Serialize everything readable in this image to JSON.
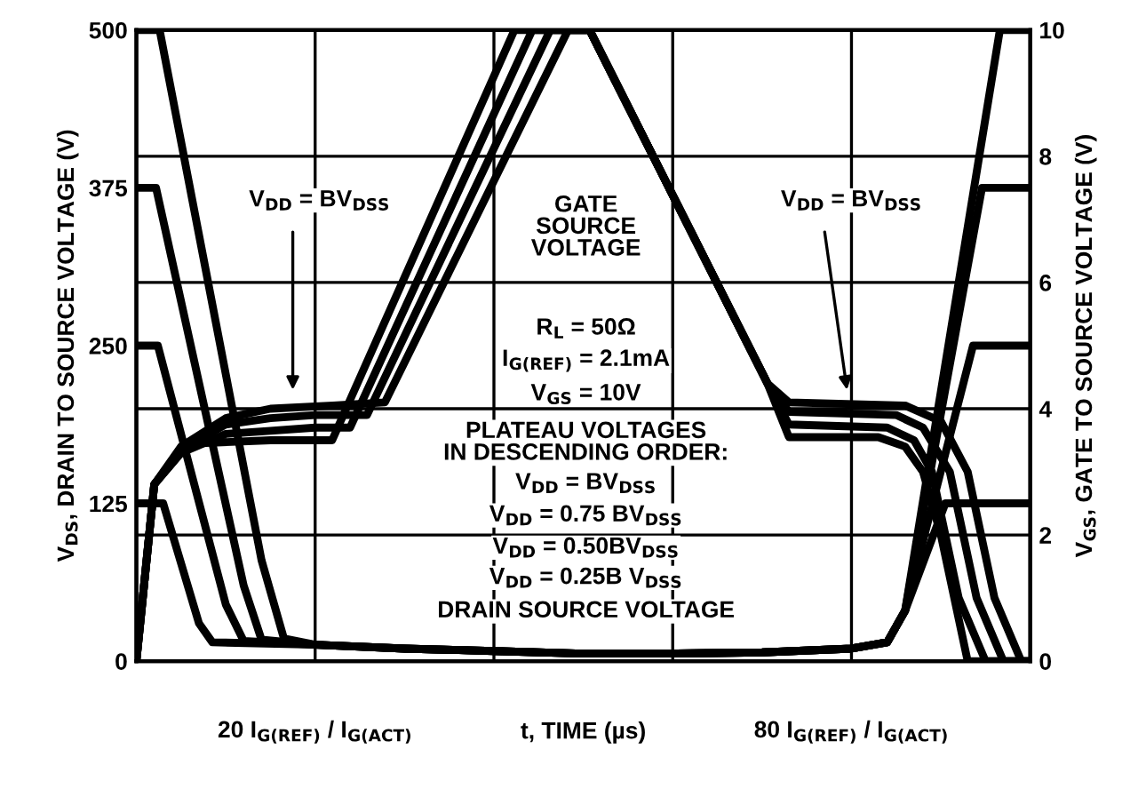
{
  "chart_data": {
    "type": "line",
    "xlabel": "t, TIME (µs)",
    "ylabel": "V$_{DS}$, DRAIN TO SOURCE VOLTAGE (V)",
    "y2label": "V$_{GS}$, GATE TO SOURCE VOLTAGE (V)",
    "xlim": [
      0,
      100
    ],
    "xticks": [
      {
        "value": 20,
        "label": "20 I$_{G(REF)}$ / I$_{G(ACT)}$"
      },
      {
        "value": 40,
        "label": null
      },
      {
        "value": 60,
        "label": null
      },
      {
        "value": 80,
        "label": "80 I$_{G(REF)}$ / I$_{G(ACT)}$"
      }
    ],
    "ylim": [
      0,
      500
    ],
    "yticks": [
      0,
      125,
      250,
      375,
      500
    ],
    "y2lim": [
      0,
      10
    ],
    "y2ticks": [
      0,
      2,
      4,
      6,
      8,
      10
    ],
    "grid": true,
    "marker": "none",
    "line_style": "solid",
    "series": [
      {
        "color": "#000000",
        "x": [
          0,
          2.6,
          14,
          16.5,
          20,
          30,
          40,
          50,
          60,
          70,
          80,
          84,
          86,
          96.6,
          100
        ],
        "values": [
          500,
          500,
          80,
          18,
          13,
          10,
          8,
          6,
          6,
          7,
          10,
          15,
          40,
          500,
          500
        ]
      },
      {
        "color": "#000000",
        "x": [
          0,
          2.2,
          12,
          14,
          20,
          30,
          40,
          50,
          60,
          70,
          80,
          84,
          86,
          94.6,
          100
        ],
        "values": [
          375,
          375,
          60,
          17,
          13,
          10,
          8,
          6,
          6,
          7,
          10,
          15,
          40,
          375,
          375
        ]
      },
      {
        "color": "#000000",
        "x": [
          0,
          2.4,
          10,
          12,
          20,
          30,
          40,
          50,
          60,
          70,
          80,
          84,
          86,
          93.6,
          100
        ],
        "values": [
          250,
          250,
          45,
          16,
          13,
          10,
          8,
          6,
          6,
          7,
          10,
          15,
          40,
          250,
          250
        ]
      },
      {
        "color": "#000000",
        "x": [
          0,
          3,
          7,
          8.5,
          20,
          30,
          40,
          50,
          60,
          70,
          80,
          84,
          86,
          90.5,
          100
        ],
        "values": [
          125,
          125,
          30,
          15,
          13,
          10,
          8,
          6,
          6,
          7,
          10,
          15,
          40,
          125,
          125
        ]
      },
      {
        "color": "#000000",
        "axis": "y2",
        "x": [
          0,
          2,
          5,
          10,
          15,
          22,
          27.8,
          48.3,
          50.7,
          70.6,
          73,
          86,
          90,
          93,
          96,
          99,
          100
        ],
        "values": [
          0,
          2.8,
          3.4,
          3.85,
          4.0,
          4.05,
          4.1,
          10,
          10,
          4.4,
          4.1,
          4.05,
          3.8,
          3,
          1,
          0,
          0
        ]
      },
      {
        "color": "#000000",
        "axis": "y2",
        "x": [
          0,
          2,
          5,
          10,
          15,
          20,
          25.8,
          46.3,
          50.7,
          70.6,
          73,
          85,
          88,
          91,
          94,
          97,
          100
        ],
        "values": [
          0,
          2.8,
          3.35,
          3.75,
          3.85,
          3.9,
          3.9,
          10,
          10,
          4.4,
          3.95,
          3.9,
          3.7,
          3,
          1,
          0,
          0
        ]
      },
      {
        "color": "#000000",
        "axis": "y2",
        "x": [
          0,
          2,
          5,
          10,
          15,
          20,
          23.9,
          44.3,
          50.7,
          70.6,
          73,
          84,
          87,
          89,
          92,
          95,
          100
        ],
        "values": [
          0,
          2.8,
          3.3,
          3.6,
          3.65,
          3.7,
          3.7,
          10,
          10,
          4.4,
          3.75,
          3.7,
          3.5,
          3,
          1,
          0,
          0
        ]
      },
      {
        "color": "#000000",
        "axis": "y2",
        "x": [
          0,
          2,
          5,
          6.6,
          15,
          21.9,
          42.3,
          50.7,
          70.6,
          73,
          83,
          86,
          88,
          90,
          93,
          100
        ],
        "values": [
          0,
          2.8,
          3.3,
          3.45,
          3.5,
          3.5,
          10,
          10,
          4.4,
          3.55,
          3.55,
          3.4,
          3,
          2,
          0,
          0
        ]
      }
    ],
    "annotations": [
      "V$_{DD}$ = BV$_{DSS}$",
      "V$_{DD}$ = BV$_{DSS}$",
      "GATE\nSOURCE\nVOLTAGE",
      "R$_{L}$ = 50Ω",
      "I$_{G(REF)}$ = 2.1mA",
      "V$_{GS}$ = 10V",
      "PLATEAU VOLTAGES\nIN DESCENDING ORDER:",
      "V$_{DD}$ = BV$_{DSS}$",
      "V$_{DD}$ = 0.75 BV$_{DSS}$",
      "V$_{DD}$ = 0.50BV$_{DSS}$",
      "V$_{DD}$ = 0.25B V$_{DSS}$",
      "DRAIN SOURCE VOLTAGE"
    ]
  }
}
